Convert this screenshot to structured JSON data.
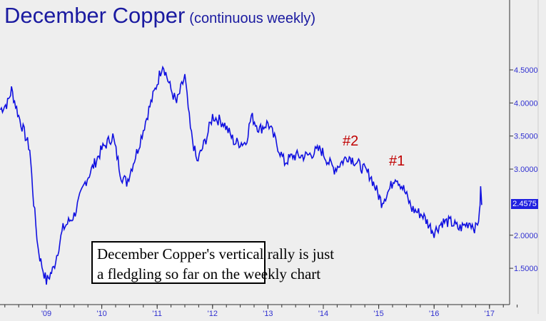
{
  "chart_data": {
    "type": "line",
    "title": "December Copper",
    "subtitle": "(continuous weekly)",
    "ylim": [
      1.0,
      5.0
    ],
    "yticks": [
      "4.5000",
      "4.0000",
      "3.5000",
      "3.0000",
      "2.0000",
      "1.5000"
    ],
    "ytick_values": [
      4.5,
      4.0,
      3.5,
      3.0,
      2.0,
      1.5
    ],
    "xticks": [
      "'09",
      "'10",
      "'11",
      "'12",
      "'13",
      "'14",
      "'15",
      "'16",
      "'17"
    ],
    "xtick_values": [
      2009,
      2010,
      2011,
      2012,
      2013,
      2014,
      2015,
      2016,
      2017
    ],
    "last_price": "2.4575",
    "line_color": "#1010e0",
    "series": [
      {
        "name": "December Copper",
        "x": [
          2008.17,
          2008.3,
          2008.37,
          2008.5,
          2008.62,
          2008.7,
          2008.77,
          2008.85,
          2008.9,
          2009.0,
          2009.13,
          2009.3,
          2009.5,
          2009.7,
          2010.0,
          2010.2,
          2010.35,
          2010.45,
          2010.65,
          2010.85,
          2011.0,
          2011.1,
          2011.25,
          2011.35,
          2011.5,
          2011.6,
          2011.72,
          2011.9,
          2012.0,
          2012.2,
          2012.4,
          2012.6,
          2012.7,
          2012.85,
          2013.0,
          2013.2,
          2013.3,
          2013.45,
          2013.7,
          2013.95,
          2014.1,
          2014.2,
          2014.45,
          2014.6,
          2014.85,
          2015.0,
          2015.05,
          2015.2,
          2015.3,
          2015.45,
          2015.6,
          2015.8,
          2015.95,
          2016.0,
          2016.15,
          2016.3,
          2016.45,
          2016.65,
          2016.75,
          2016.82,
          2016.84,
          2016.86
        ],
        "y": [
          3.9,
          4.0,
          4.2,
          3.8,
          3.5,
          3.3,
          2.5,
          1.8,
          1.6,
          1.3,
          1.5,
          2.1,
          2.3,
          2.8,
          3.3,
          3.5,
          2.9,
          2.8,
          3.3,
          3.9,
          4.3,
          4.6,
          4.2,
          4.0,
          4.4,
          3.6,
          3.1,
          3.5,
          3.8,
          3.7,
          3.4,
          3.4,
          3.8,
          3.6,
          3.7,
          3.3,
          3.1,
          3.2,
          3.2,
          3.3,
          3.1,
          3.0,
          3.2,
          3.1,
          2.9,
          2.6,
          2.5,
          2.7,
          2.9,
          2.7,
          2.4,
          2.3,
          2.1,
          2.05,
          2.2,
          2.2,
          2.1,
          2.2,
          2.1,
          2.3,
          2.7,
          2.4575
        ]
      }
    ],
    "annotations": [
      "#2",
      "#1"
    ],
    "note_lines": [
      "December Copper's vertical rally is just",
      "a fledgling so far on the weekly chart"
    ]
  }
}
